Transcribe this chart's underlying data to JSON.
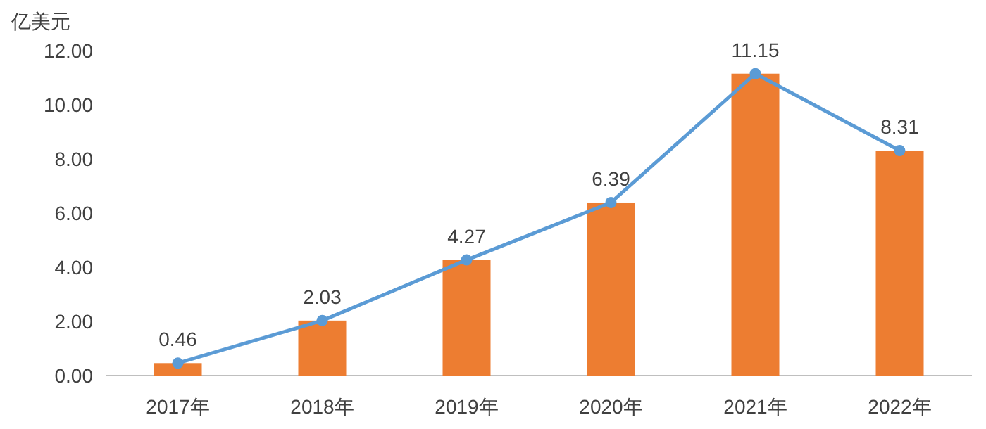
{
  "chart_data": {
    "type": "bar",
    "ylabel": "亿美元",
    "categories": [
      "2017年",
      "2018年",
      "2019年",
      "2020年",
      "2021年",
      "2022年"
    ],
    "series": [
      {
        "type": "bar",
        "color": "#ed7d31",
        "values": [
          0.46,
          2.03,
          4.27,
          6.39,
          11.15,
          8.31
        ]
      },
      {
        "type": "line",
        "color": "#5b9bd5",
        "marker": "circle",
        "line_style": "solid",
        "values": [
          0.46,
          2.03,
          4.27,
          6.39,
          11.15,
          8.31
        ],
        "value_labels": [
          "0.46",
          "2.03",
          "4.27",
          "6.39",
          "11.15",
          "8.31"
        ]
      }
    ],
    "ylim": [
      0,
      12
    ],
    "yticks": [
      {
        "value": 0,
        "label": "0.00"
      },
      {
        "value": 2,
        "label": "2.00"
      },
      {
        "value": 4,
        "label": "4.00"
      },
      {
        "value": 6,
        "label": "6.00"
      },
      {
        "value": 8,
        "label": "8.00"
      },
      {
        "value": 10,
        "label": "10.00"
      },
      {
        "value": 12,
        "label": "12.00"
      }
    ],
    "grid": false
  }
}
